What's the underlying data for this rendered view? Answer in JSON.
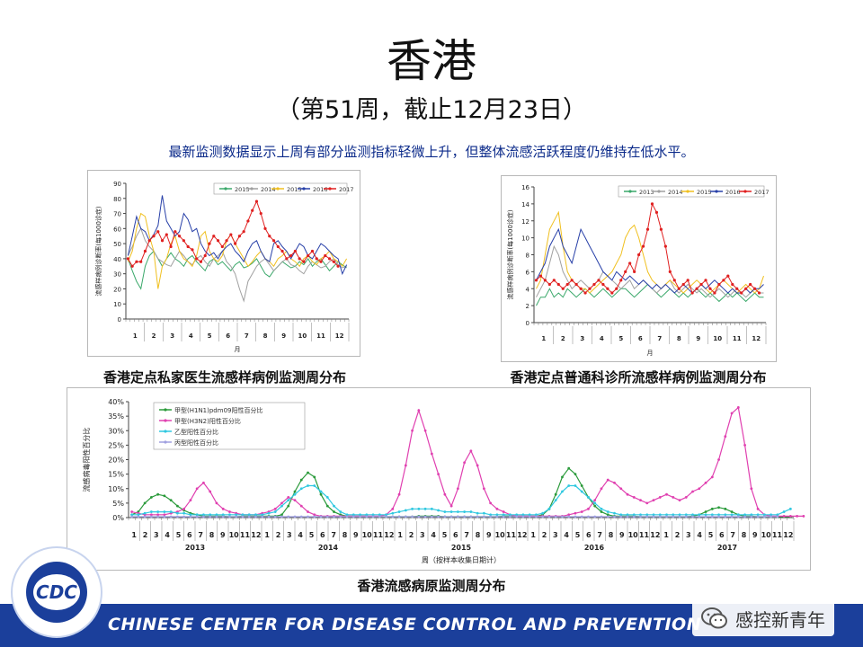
{
  "slide": {
    "title": "香港",
    "subtitle": "（第51周，截止12月23日）",
    "note": "最新监测数据显示上周有部分监测指标轻微上升，但整体流感活跃程度仍维持在低水平。",
    "footer": "CHINESE CENTER FOR DISEASE CONTROL AND PREVENTION",
    "logo_text": "CDC",
    "watermark": "感控新青年"
  },
  "colors": {
    "footer_bar": "#1b3f9b",
    "note_text": "#0b2a8a"
  },
  "chart_data": [
    {
      "type": "line",
      "title": "香港定点私家医生流感样病例监测周分布",
      "ylabel": "流感样病例诊断率(每1000诊症)",
      "xlabel": "月",
      "ylim": [
        0,
        90
      ],
      "yticks": [
        0,
        10,
        20,
        30,
        40,
        50,
        60,
        70,
        80,
        90
      ],
      "month_labels": [
        "1",
        "2",
        "3",
        "4",
        "5",
        "6",
        "7",
        "8",
        "9",
        "10",
        "11",
        "12"
      ],
      "legend_position": "top-right",
      "series": [
        {
          "name": "2013",
          "color": "#3aa86a",
          "values": [
            40,
            32,
            25,
            20,
            35,
            42,
            45,
            40,
            35,
            40,
            44,
            40,
            38,
            35,
            40,
            42,
            38,
            35,
            32,
            38,
            40,
            36,
            38,
            35,
            32,
            36,
            38,
            34,
            35,
            37,
            40,
            35,
            30,
            28,
            32,
            35,
            38,
            36,
            34,
            35,
            38,
            36,
            40,
            35,
            38,
            40,
            36,
            32,
            35,
            38,
            36,
            34
          ]
        },
        {
          "name": "2014",
          "color": "#a0a0a0",
          "values": [
            42,
            48,
            55,
            60,
            52,
            48,
            45,
            40,
            38,
            36,
            35,
            40,
            45,
            42,
            38,
            36,
            40,
            42,
            38,
            35,
            40,
            42,
            45,
            38,
            35,
            30,
            20,
            12,
            25,
            30,
            35,
            38,
            40,
            36,
            32,
            35,
            38,
            40,
            36,
            35,
            32,
            30,
            35,
            38,
            36,
            34,
            35,
            38,
            40,
            36,
            34,
            35
          ]
        },
        {
          "name": "2015",
          "color": "#f0c020",
          "values": [
            38,
            45,
            60,
            70,
            68,
            55,
            45,
            20,
            35,
            40,
            50,
            55,
            45,
            40,
            38,
            35,
            42,
            55,
            58,
            45,
            40,
            38,
            42,
            52,
            56,
            50,
            45,
            40,
            35,
            38,
            42,
            45,
            40,
            38,
            35,
            40,
            42,
            45,
            40,
            38,
            35,
            40,
            42,
            38,
            36,
            40,
            42,
            45,
            40,
            38,
            35,
            40
          ]
        },
        {
          "name": "2016",
          "color": "#2840a8",
          "values": [
            42,
            55,
            68,
            60,
            58,
            52,
            56,
            62,
            82,
            65,
            60,
            55,
            58,
            70,
            66,
            58,
            60,
            50,
            45,
            42,
            44,
            40,
            45,
            48,
            50,
            45,
            42,
            38,
            45,
            50,
            52,
            45,
            40,
            38,
            50,
            52,
            48,
            45,
            40,
            45,
            50,
            48,
            42,
            40,
            45,
            50,
            48,
            45,
            42,
            40,
            30,
            36
          ]
        },
        {
          "name": "2017",
          "color": "#e02020",
          "values": [
            40,
            35,
            38,
            38,
            45,
            52,
            55,
            58,
            52,
            56,
            48,
            58,
            55,
            52,
            48,
            46,
            40,
            38,
            42,
            50,
            55,
            52,
            48,
            52,
            56,
            50,
            55,
            58,
            65,
            72,
            78,
            70,
            60,
            55,
            52,
            48,
            45,
            40,
            42,
            45,
            40,
            38,
            42,
            45,
            40,
            38,
            42,
            40,
            38,
            35,
            null,
            null
          ]
        }
      ]
    },
    {
      "type": "line",
      "title": "香港定点普通科诊所流感样病例监测周分布",
      "ylabel": "流感样病例诊断率(每1000诊症)",
      "xlabel": "月",
      "ylim": [
        0,
        16
      ],
      "yticks": [
        0,
        2,
        4,
        6,
        8,
        10,
        12,
        14,
        16
      ],
      "month_labels": [
        "1",
        "2",
        "3",
        "4",
        "5",
        "6",
        "7",
        "8",
        "9",
        "10",
        "11",
        "12"
      ],
      "legend_position": "top-right",
      "series": [
        {
          "name": "2013",
          "color": "#3aa86a",
          "values": [
            2,
            3,
            3,
            4,
            3,
            3.5,
            3,
            4,
            3.5,
            3,
            3.5,
            4,
            3.5,
            3,
            3.5,
            4,
            3.5,
            3,
            3.5,
            4,
            4,
            3.5,
            3,
            3.5,
            4,
            4.5,
            4,
            3.5,
            3,
            3.5,
            4,
            3.5,
            3,
            3.5,
            3,
            3.5,
            4,
            3.5,
            3,
            3.5,
            3,
            2.5,
            3,
            3.5,
            3,
            3.5,
            3,
            2.5,
            3,
            3.5,
            3,
            3
          ]
        },
        {
          "name": "2014",
          "color": "#a0a0a0",
          "values": [
            3,
            4,
            5,
            7,
            9,
            8,
            6,
            5,
            4,
            4.5,
            5,
            4.5,
            4,
            4.5,
            5,
            6,
            5.5,
            5,
            4.5,
            4,
            4.5,
            5,
            4,
            4.5,
            5,
            4.5,
            4,
            3.5,
            4,
            4.5,
            5,
            4,
            3.5,
            4,
            4.5,
            4,
            3.5,
            4,
            3.5,
            3,
            3.5,
            4,
            3.5,
            3,
            3.5,
            4,
            3.5,
            3,
            3.5,
            4,
            3.5,
            3.5
          ]
        },
        {
          "name": "2015",
          "color": "#f0c020",
          "values": [
            4,
            5,
            8,
            11,
            12,
            13,
            9,
            6,
            5,
            4.5,
            4,
            4,
            3.5,
            4,
            4.5,
            5,
            5.5,
            6,
            7,
            8,
            10,
            11,
            11.5,
            10,
            8,
            6,
            5,
            4.5,
            4,
            4.5,
            5,
            4.5,
            4,
            3.5,
            4,
            4.5,
            5,
            4.5,
            4,
            3.5,
            4,
            4.5,
            5,
            4.5,
            4,
            3.5,
            4,
            4.5,
            4,
            3.5,
            4,
            5.5
          ]
        },
        {
          "name": "2016",
          "color": "#2840a8",
          "values": [
            5,
            6,
            7,
            9,
            10,
            11,
            9,
            8,
            7,
            9,
            11,
            10,
            9,
            8,
            7,
            6,
            5.5,
            5,
            6,
            5.5,
            5,
            5.5,
            5,
            4.5,
            5,
            4.5,
            4,
            4.5,
            4,
            4.5,
            4,
            3.5,
            4,
            4.5,
            4,
            3.5,
            4,
            4.5,
            4,
            4.5,
            5,
            4.5,
            4,
            3.5,
            4,
            3.5,
            3.5,
            4,
            3.5,
            4,
            4,
            4.5
          ]
        },
        {
          "name": "2017",
          "color": "#e02020",
          "values": [
            5,
            5.5,
            5,
            4.5,
            5,
            4.5,
            4,
            4.5,
            5,
            4.5,
            4,
            3.5,
            4,
            4.5,
            5,
            4.5,
            4,
            3.5,
            4,
            5,
            6,
            7,
            6,
            8,
            9,
            11,
            14,
            13,
            11,
            9,
            6,
            5,
            4,
            4.5,
            5,
            3.5,
            4,
            4.5,
            5,
            4,
            3.5,
            4.5,
            5,
            5.5,
            4.5,
            4,
            3.5,
            4,
            4.5,
            4,
            3.5,
            null
          ]
        }
      ]
    },
    {
      "type": "line",
      "title": "香港流感病原监测周分布",
      "ylabel": "流感病毒阳性百分比",
      "xlabel": "周（按样本收集日期计）",
      "ylim": [
        0,
        40
      ],
      "yticks": [
        "0%",
        "5%",
        "10%",
        "15%",
        "20%",
        "25%",
        "30%",
        "35%",
        "40%"
      ],
      "year_labels": [
        "2013",
        "2014",
        "2015",
        "2016",
        "2017"
      ],
      "month_labels": [
        "1",
        "2",
        "3",
        "4",
        "5",
        "6",
        "7",
        "8",
        "9",
        "10",
        "11",
        "12"
      ],
      "legend_position": "top-left",
      "series": [
        {
          "name": "甲型(H1N1)pdm09阳性百分比",
          "color": "#2a9a3a",
          "values": [
            1,
            2,
            5,
            7,
            8,
            7.5,
            6,
            4,
            2.5,
            1.5,
            1,
            0.5,
            0.5,
            0.5,
            0.5,
            0.3,
            0.3,
            0.5,
            0.5,
            0.5,
            0.5,
            0.5,
            0.5,
            1,
            4,
            9,
            13,
            15.5,
            14,
            8,
            4,
            2,
            1,
            0.5,
            0.5,
            0.5,
            0.5,
            0.3,
            0.3,
            0.3,
            0.3,
            0.3,
            0.3,
            0.3,
            0.5,
            0.5,
            0.5,
            0.5,
            0.3,
            0.3,
            0.3,
            0.3,
            0.3,
            0.3,
            0.3,
            0.3,
            0.3,
            0.5,
            0.5,
            0.5,
            0.5,
            0.5,
            0.5,
            1,
            3,
            8,
            14,
            17,
            15,
            11,
            7,
            4,
            2,
            1,
            0.5,
            0.5,
            0.5,
            0.5,
            0.3,
            0.3,
            0.3,
            0.3,
            0.3,
            0.3,
            0.3,
            0.3,
            0.5,
            1,
            2,
            3,
            3.5,
            3,
            2,
            1,
            0.5,
            0.5,
            0.3,
            0.3,
            0.3,
            0.3,
            0.3,
            0.3
          ]
        },
        {
          "name": "甲型(H3N2)阳性百分比",
          "color": "#e040b0",
          "values": [
            2,
            1.5,
            1,
            1,
            1,
            1,
            1.5,
            2,
            3,
            6,
            10,
            12,
            9,
            5,
            3,
            2,
            1.5,
            1,
            1,
            1,
            1.5,
            2,
            3,
            5,
            7,
            6,
            4,
            2,
            1,
            0.5,
            0.5,
            0.5,
            0.5,
            0.5,
            0.5,
            0.5,
            0.5,
            0.5,
            0.5,
            1,
            3,
            8,
            18,
            30,
            37,
            30,
            22,
            15,
            8,
            4,
            10,
            19,
            23,
            18,
            10,
            5,
            3,
            2,
            1,
            0.5,
            0.5,
            0.5,
            0.5,
            0.5,
            0.5,
            0.5,
            0.5,
            1,
            1.5,
            2,
            3,
            6,
            10,
            13,
            12,
            10,
            8,
            7,
            6,
            5,
            6,
            7,
            8,
            7,
            6,
            7,
            9,
            10,
            12,
            14,
            20,
            28,
            36,
            38,
            25,
            10,
            3,
            1,
            0.5,
            0.5,
            0.5,
            0.5,
            0.5,
            0.5
          ]
        },
        {
          "name": "乙型阳性百分比",
          "color": "#30c8e0",
          "values": [
            1,
            1,
            1.5,
            2,
            2,
            2,
            2,
            1.5,
            1.5,
            1,
            1,
            1,
            1,
            1,
            1,
            1,
            1,
            1,
            1,
            1,
            1,
            1.5,
            2,
            4,
            6,
            8,
            10,
            11,
            11,
            9,
            7,
            4,
            2,
            1,
            1,
            1,
            1,
            1,
            1,
            1,
            1.5,
            2,
            2.5,
            3,
            3,
            3,
            3,
            2.5,
            2,
            2,
            2,
            2,
            2,
            1.5,
            1.5,
            1,
            1,
            1,
            1,
            1,
            1,
            1,
            1,
            1.5,
            3,
            6,
            9,
            11,
            11,
            9,
            7,
            5,
            3,
            2,
            1.5,
            1,
            1,
            1,
            1,
            1,
            1,
            1,
            1,
            1,
            1,
            1,
            1,
            1,
            1,
            1,
            1,
            1,
            1,
            1,
            1,
            1,
            1,
            1,
            1,
            1,
            2,
            3
          ]
        },
        {
          "name": "丙型阳性百分比",
          "color": "#a0a0e0",
          "values": [
            0.3,
            0.3,
            0.3,
            0.3,
            0.3,
            0.3,
            0.3,
            0.3,
            0.3,
            0.3,
            0.3,
            0.3,
            0.3,
            0.3,
            0.3,
            0.3,
            0.3,
            0.3,
            0.3,
            0.3,
            0.3,
            0.3,
            0.3,
            0.3,
            0.3,
            0.3,
            0.3,
            0.3,
            0.3,
            0.3,
            0.3,
            0.3,
            0.3,
            0.3,
            0.3,
            0.3,
            0.3,
            0.3,
            0.3,
            0.3,
            0.3,
            0.3,
            0.3,
            0.3,
            0.3,
            0.3,
            0.3,
            0.3,
            0.3,
            0.3,
            0.3,
            0.3,
            0.3,
            0.3,
            0.3,
            0.3,
            0.3,
            0.3,
            0.3,
            0.3,
            0.3,
            0.3,
            0.3,
            0.3,
            0.3,
            0.3,
            0.3,
            0.3,
            0.3,
            0.3,
            0.3,
            0.3,
            0.3,
            0.3,
            0.3,
            0.3,
            0.3,
            0.3,
            0.3,
            0.3,
            0.3,
            0.3,
            0.3,
            0.3,
            0.3,
            0.3,
            0.3,
            0.3,
            0.3,
            0.3,
            0.3,
            0.3,
            0.3,
            0.3,
            0.3,
            0.3,
            0.3,
            0.3,
            0.3,
            0.3
          ]
        }
      ]
    }
  ]
}
